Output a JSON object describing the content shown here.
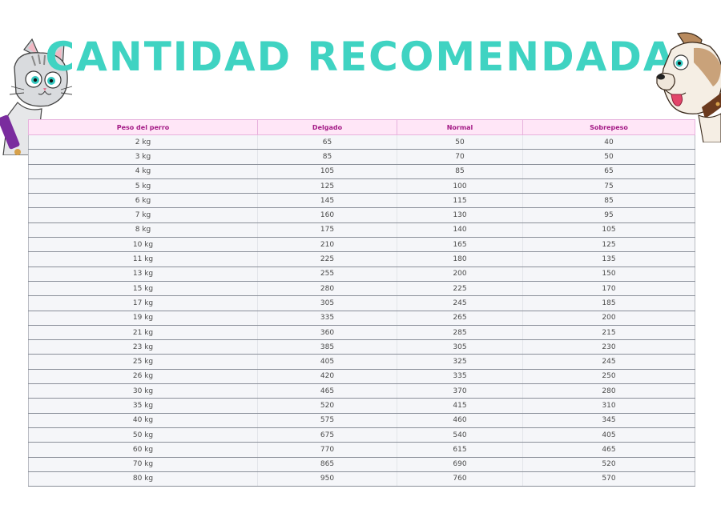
{
  "title": "CANTIDAD RECOMENDADA",
  "icons": {
    "left": "cartoon-cat-icon",
    "right": "cartoon-dog-icon"
  },
  "colors": {
    "title": "#3fd3c2",
    "header_bg": "#ffe6f7",
    "header_text": "#a41a86",
    "row_bg": "#f5f6f9"
  },
  "table": {
    "headers": [
      "Peso del perro",
      "Delgado",
      "Normal",
      "Sobrepeso"
    ],
    "rows": [
      [
        "2 kg",
        "65",
        "50",
        "40"
      ],
      [
        "3 kg",
        "85",
        "70",
        "50"
      ],
      [
        "4 kg",
        "105",
        "85",
        "65"
      ],
      [
        "5 kg",
        "125",
        "100",
        "75"
      ],
      [
        "6 kg",
        "145",
        "115",
        "85"
      ],
      [
        "7 kg",
        "160",
        "130",
        "95"
      ],
      [
        "8 kg",
        "175",
        "140",
        "105"
      ],
      [
        "10 kg",
        "210",
        "165",
        "125"
      ],
      [
        "11 kg",
        "225",
        "180",
        "135"
      ],
      [
        "13 kg",
        "255",
        "200",
        "150"
      ],
      [
        "15 kg",
        "280",
        "225",
        "170"
      ],
      [
        "17 kg",
        "305",
        "245",
        "185"
      ],
      [
        "19 kg",
        "335",
        "265",
        "200"
      ],
      [
        "21 kg",
        "360",
        "285",
        "215"
      ],
      [
        "23 kg",
        "385",
        "305",
        "230"
      ],
      [
        "25 kg",
        "405",
        "325",
        "245"
      ],
      [
        "26 kg",
        "420",
        "335",
        "250"
      ],
      [
        "30 kg",
        "465",
        "370",
        "280"
      ],
      [
        "35 kg",
        "520",
        "415",
        "310"
      ],
      [
        "40 kg",
        "575",
        "460",
        "345"
      ],
      [
        "50 kg",
        "675",
        "540",
        "405"
      ],
      [
        "60 kg",
        "770",
        "615",
        "465"
      ],
      [
        "70 kg",
        "865",
        "690",
        "520"
      ],
      [
        "80 kg",
        "950",
        "760",
        "570"
      ]
    ]
  }
}
